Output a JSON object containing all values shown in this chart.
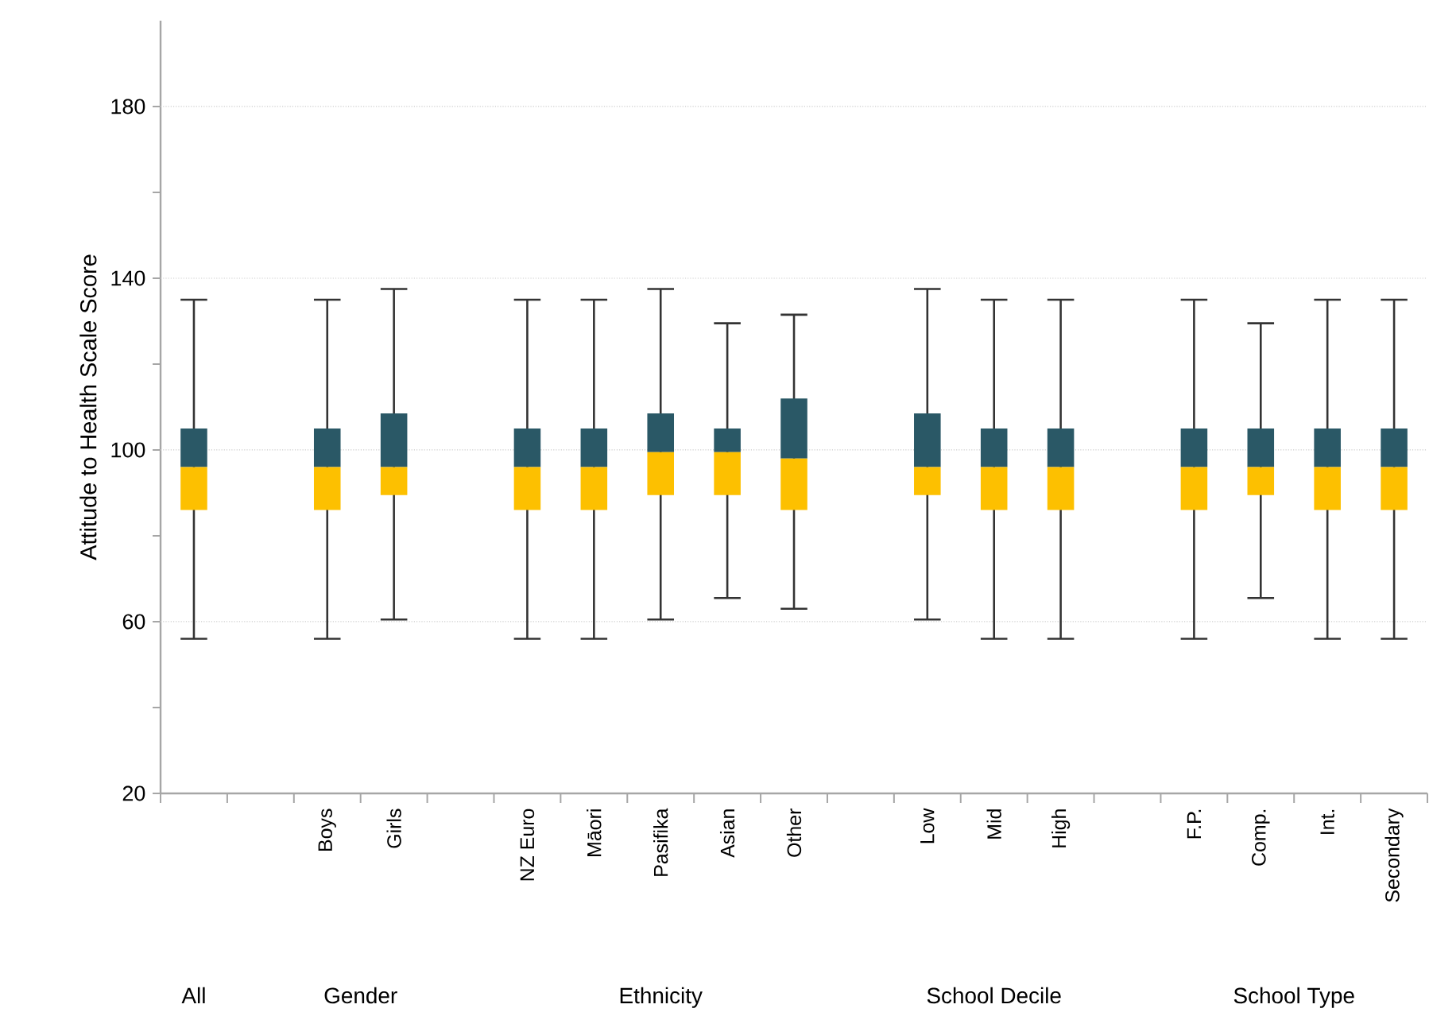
{
  "chart_data": {
    "type": "box",
    "ylabel": "Attitude to Health Scale Score",
    "categories": [
      null,
      null,
      "Boys",
      "Girls",
      null,
      "NZ Euro",
      "Māori",
      "Pasifika",
      "Asian",
      "Other",
      null,
      "Low",
      "Mid",
      "High",
      null,
      "F.P.",
      "Comp.",
      "Int.",
      "Secondary"
    ],
    "boxes": [
      {
        "low": 56,
        "q1": 86,
        "median": 96,
        "q3": 105,
        "high": 135
      },
      null,
      {
        "low": 56,
        "q1": 86,
        "median": 96,
        "q3": 105,
        "high": 135
      },
      {
        "low": 60.5,
        "q1": 89.5,
        "median": 96,
        "q3": 108.5,
        "high": 137.5
      },
      null,
      {
        "low": 56,
        "q1": 86,
        "median": 96,
        "q3": 105,
        "high": 135
      },
      {
        "low": 56,
        "q1": 86,
        "median": 96,
        "q3": 105,
        "high": 135
      },
      {
        "low": 60.5,
        "q1": 89.5,
        "median": 99.5,
        "q3": 108.5,
        "high": 137.5
      },
      {
        "low": 65.5,
        "q1": 89.5,
        "median": 99.5,
        "q3": 105,
        "high": 129.5
      },
      {
        "low": 63,
        "q1": 86,
        "median": 98,
        "q3": 112,
        "high": 131.5
      },
      null,
      {
        "low": 60.5,
        "q1": 89.5,
        "median": 96,
        "q3": 108.5,
        "high": 137.5
      },
      {
        "low": 56,
        "q1": 86,
        "median": 96,
        "q3": 105,
        "high": 135
      },
      {
        "low": 56,
        "q1": 86,
        "median": 96,
        "q3": 105,
        "high": 135
      },
      null,
      {
        "low": 56,
        "q1": 86,
        "median": 96,
        "q3": 105,
        "high": 135
      },
      {
        "low": 65.5,
        "q1": 89.5,
        "median": 96,
        "q3": 105,
        "high": 129.5
      },
      {
        "low": 56,
        "q1": 86,
        "median": 96,
        "q3": 105,
        "high": 135
      },
      {
        "low": 56,
        "q1": 86,
        "median": 96,
        "q3": 105,
        "high": 135
      }
    ],
    "colors": [
      [
        "#2a5866",
        "#fdc000"
      ],
      null,
      [
        "#2a5866",
        "#fdc000"
      ],
      [
        "#2a5866",
        "#fdc000"
      ],
      null,
      [
        "#2a5866",
        "#fdc000"
      ],
      [
        "#2a5866",
        "#fdc000"
      ],
      [
        "#2a5866",
        "#fdc000"
      ],
      [
        "#2a5866",
        "#fdc000"
      ],
      [
        "#2a5866",
        "#fdc000"
      ],
      null,
      [
        "#2a5866",
        "#fdc000"
      ],
      [
        "#2a5866",
        "#fdc000"
      ],
      [
        "#2a5866",
        "#fdc000"
      ],
      null,
      [
        "#2a5866",
        "#fdc000"
      ],
      [
        "#2a5866",
        "#fdc000"
      ],
      [
        "#2a5866",
        "#fdc000"
      ],
      [
        "#2a5866",
        "#fdc000"
      ]
    ],
    "ylim": [
      20,
      200
    ],
    "yticks": [
      20,
      {
        "value": 40,
        "label": null
      },
      60,
      {
        "value": 80,
        "label": null
      },
      100,
      {
        "value": 120,
        "label": null
      },
      140,
      {
        "value": 160,
        "label": null
      },
      180
    ],
    "grid": "y",
    "annotations": [
      "All",
      "Gender",
      "Ethnicity",
      "School Decile",
      "School Type"
    ]
  }
}
